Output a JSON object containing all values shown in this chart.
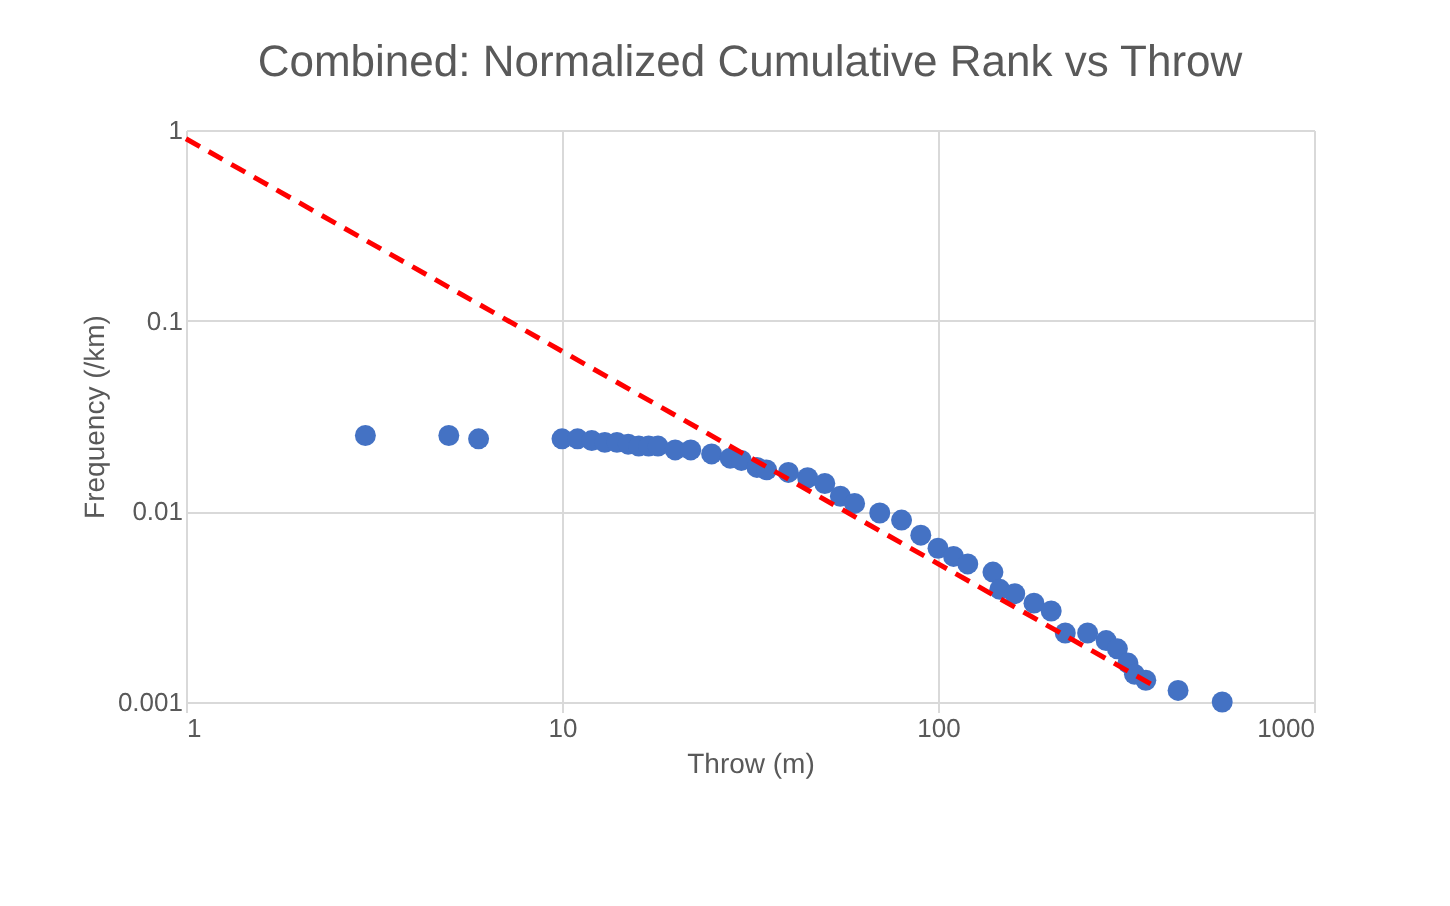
{
  "chart_data": {
    "type": "scatter",
    "title": "Combined: Normalized Cumulative Rank vs Throw",
    "xlabel": "Throw (m)",
    "ylabel": "Frequency (/km)",
    "log": "xy",
    "grid": true,
    "marker": "circle",
    "xlim": [
      1,
      1000
    ],
    "xticks": [
      1,
      10,
      100,
      1000
    ],
    "ylim": [
      0.001,
      1
    ],
    "yticks": [
      0.001,
      0.01,
      0.1,
      1
    ],
    "series": [
      {
        "color": "#4472c4",
        "x": [
          3,
          5,
          6,
          10,
          11,
          12,
          13,
          14,
          15,
          16,
          17,
          18,
          20,
          22,
          25,
          28,
          30,
          33,
          35,
          40,
          45,
          50,
          55,
          60,
          70,
          80,
          90,
          100,
          110,
          120,
          140,
          146,
          160,
          180,
          200,
          218,
          250,
          280,
          300,
          320,
          333,
          357,
          435,
          570
        ],
        "values": [
          0.025,
          0.025,
          0.024,
          0.024,
          0.024,
          0.0235,
          0.023,
          0.023,
          0.0225,
          0.022,
          0.022,
          0.022,
          0.021,
          0.021,
          0.02,
          0.019,
          0.0185,
          0.017,
          0.0165,
          0.016,
          0.015,
          0.014,
          0.012,
          0.011,
          0.0098,
          0.009,
          0.0075,
          0.0064,
          0.0058,
          0.0053,
          0.0048,
          0.0039,
          0.0037,
          0.0033,
          0.003,
          0.0023,
          0.0023,
          0.0021,
          0.0019,
          0.0016,
          0.0014,
          0.0013,
          0.00115,
          0.001
        ]
      },
      {
        "type": "line",
        "color": "#ff0000",
        "line_style": "dashed",
        "marker": "none",
        "x": [
          1,
          380
        ],
        "values": [
          0.9,
          0.0012
        ]
      }
    ]
  }
}
